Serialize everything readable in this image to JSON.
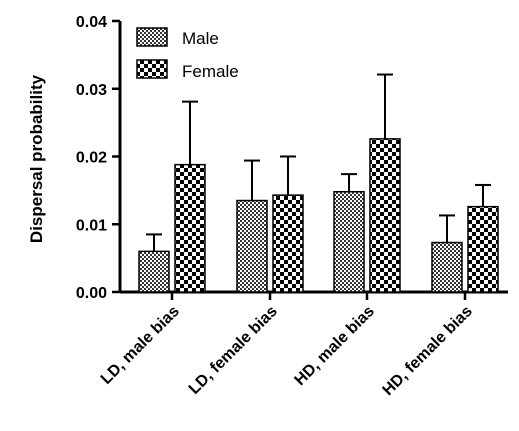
{
  "chart_data": {
    "type": "bar",
    "title": "",
    "xlabel": "",
    "ylabel": "Dispersal probability",
    "ylim": [
      0,
      0.04
    ],
    "yticks": [
      "0.00",
      "0.01",
      "0.02",
      "0.03",
      "0.04"
    ],
    "ytick_values": [
      0,
      0.01,
      0.02,
      0.03,
      0.04
    ],
    "categories": [
      "LD, male bias",
      "LD, female bias",
      "HD, male bias",
      "HD, female bias"
    ],
    "series": [
      {
        "name": "Male",
        "pattern": "fine-checker",
        "values": [
          0.006,
          0.0135,
          0.0148,
          0.0073
        ],
        "error_upper": [
          0.0085,
          0.0194,
          0.0174,
          0.0113
        ]
      },
      {
        "name": "Female",
        "pattern": "coarse-checker",
        "values": [
          0.0188,
          0.0143,
          0.0226,
          0.0126
        ],
        "error_upper": [
          0.0281,
          0.02,
          0.0321,
          0.0158
        ]
      }
    ],
    "legend_position": "top-left",
    "grid": false,
    "colors": {
      "bar_dark": "#000000",
      "bar_light": "#ffffff",
      "axis": "#000000"
    }
  }
}
